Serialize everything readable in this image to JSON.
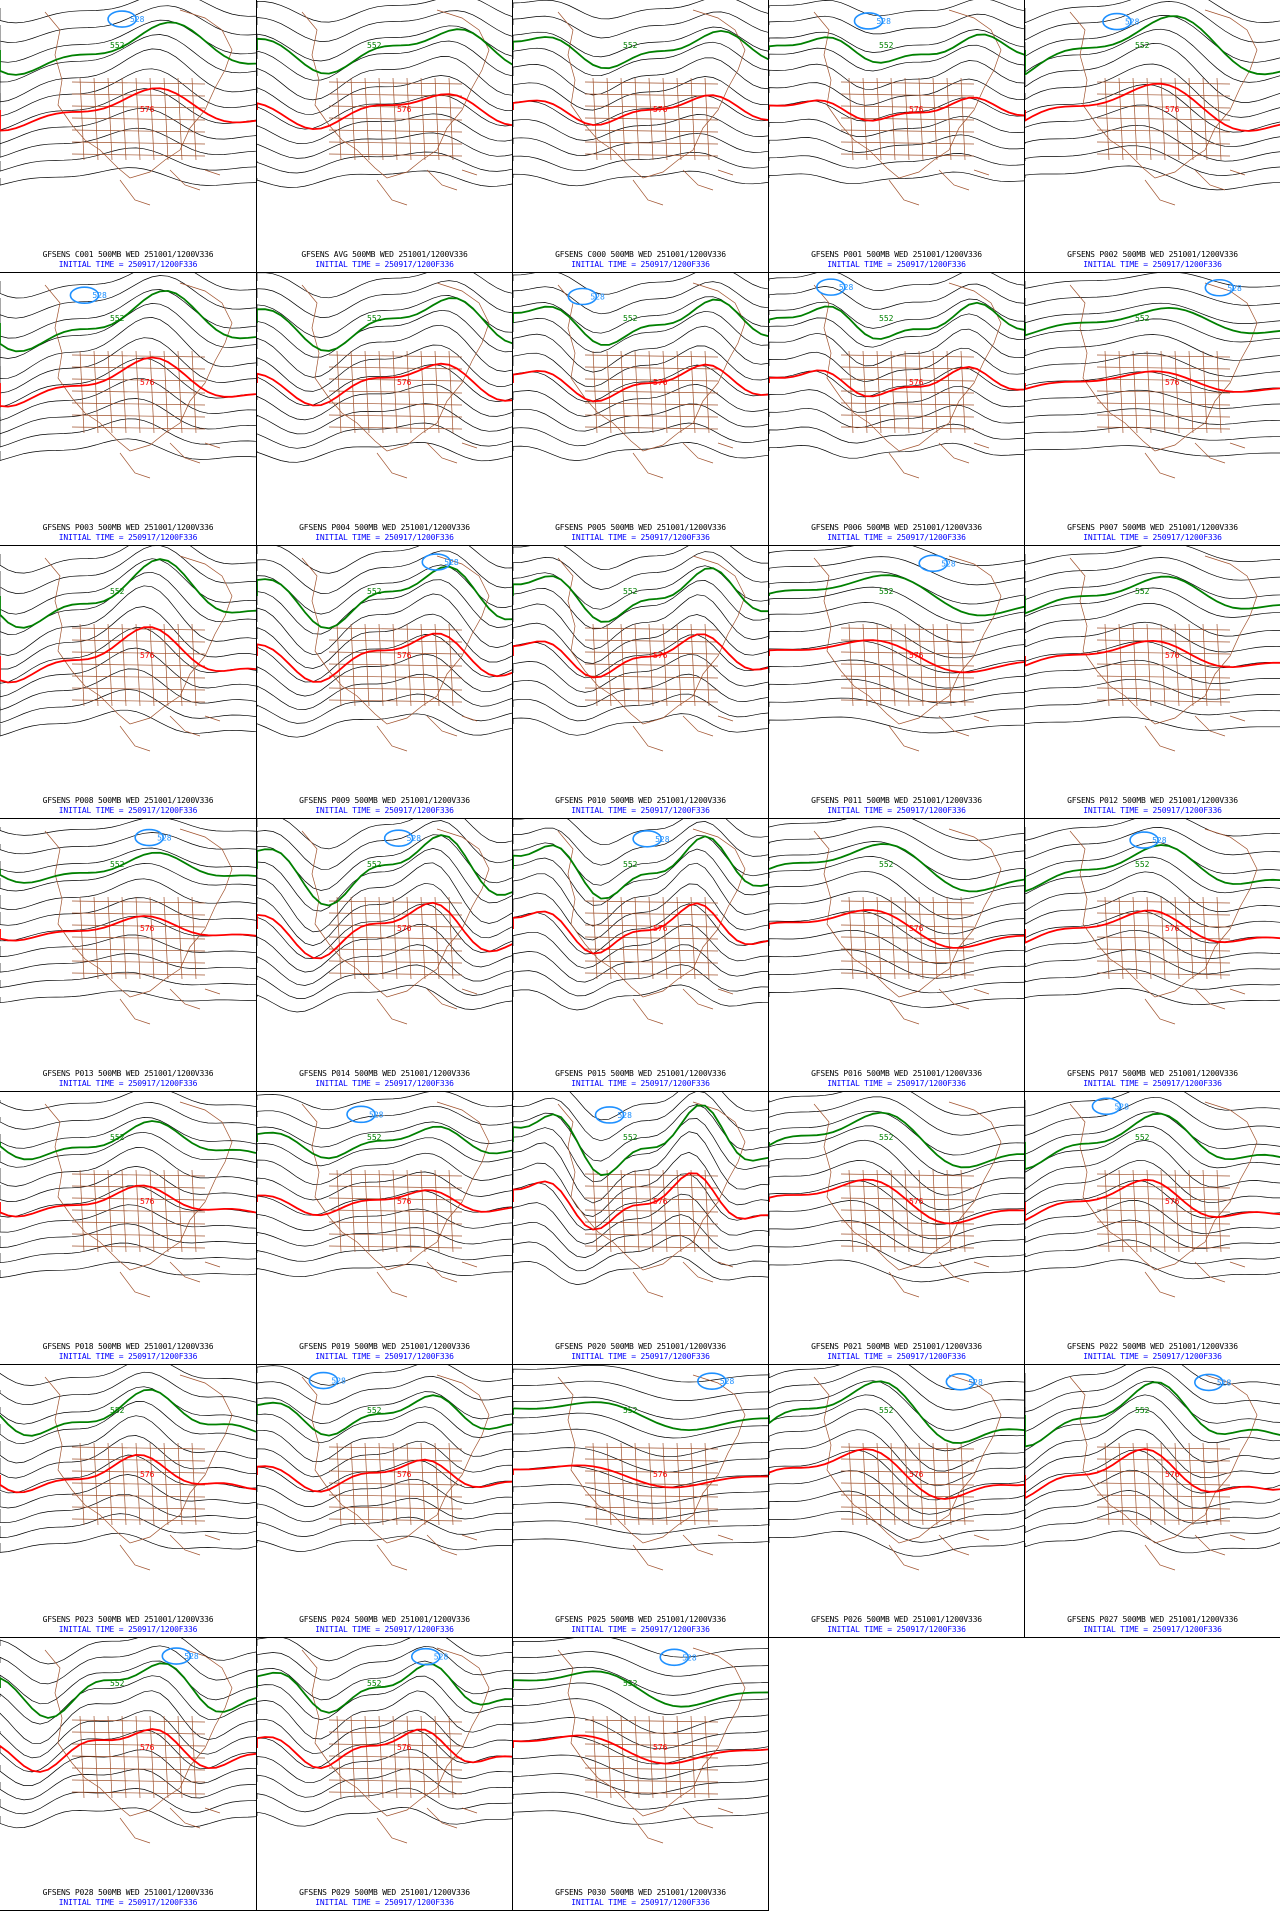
{
  "colors": {
    "height_contour": "#000000",
    "contour_552": "#008000",
    "contour_576": "#ff0000",
    "contour_528": "#1e90ff",
    "map": "#a0522d",
    "caption_title": "#000000",
    "caption_time": "#0000ff"
  },
  "panels": [
    {
      "title": "GFSENS C001 500MB WED 251001/1200V336",
      "time": "INITIAL TIME = 250917/1200F336",
      "labels": {
        "green": "552",
        "red": "576",
        "blue": "528"
      }
    },
    {
      "title": "GFSENS AVG 500MB WED 251001/1200V336",
      "time": "INITIAL TIME = 250917/1200F336",
      "labels": {
        "green": "552",
        "red": "576"
      }
    },
    {
      "title": "GFSENS C000 500MB WED 251001/1200V336",
      "time": "INITIAL TIME = 250917/1200F336",
      "labels": {
        "green": "552",
        "red": "576"
      }
    },
    {
      "title": "GFSENS P001 500MB WED 251001/1200V336",
      "time": "INITIAL TIME = 250917/1200F336",
      "labels": {
        "green": "552",
        "red": "576",
        "blue": "528"
      }
    },
    {
      "title": "GFSENS P002 500MB WED 251001/1200V336",
      "time": "INITIAL TIME = 250917/1200F336",
      "labels": {
        "green": "552",
        "red": "576",
        "blue": "528"
      }
    },
    {
      "title": "GFSENS P003 500MB WED 251001/1200V336",
      "time": "INITIAL TIME = 250917/1200F336",
      "labels": {
        "green": "552",
        "red": "576",
        "blue": "528"
      }
    },
    {
      "title": "GFSENS P004 500MB WED 251001/1200V336",
      "time": "INITIAL TIME = 250917/1200F336",
      "labels": {
        "green": "552",
        "red": "576"
      }
    },
    {
      "title": "GFSENS P005 500MB WED 251001/1200V336",
      "time": "INITIAL TIME = 250917/1200F336",
      "labels": {
        "green": "552",
        "red": "576",
        "blue": "528"
      }
    },
    {
      "title": "GFSENS P006 500MB WED 251001/1200V336",
      "time": "INITIAL TIME = 250917/1200F336",
      "labels": {
        "green": "552",
        "red": "576",
        "blue": "528"
      }
    },
    {
      "title": "GFSENS P007 500MB WED 251001/1200V336",
      "time": "INITIAL TIME = 250917/1200F336",
      "labels": {
        "green": "552",
        "red": "576",
        "blue": "528"
      }
    },
    {
      "title": "GFSENS P008 500MB WED 251001/1200V336",
      "time": "INITIAL TIME = 250917/1200F336",
      "labels": {
        "green": "552",
        "red": "576"
      }
    },
    {
      "title": "GFSENS P009 500MB WED 251001/1200V336",
      "time": "INITIAL TIME = 250917/1200F336",
      "labels": {
        "green": "552",
        "red": "576",
        "blue": "528"
      }
    },
    {
      "title": "GFSENS P010 500MB WED 251001/1200V336",
      "time": "INITIAL TIME = 250917/1200F336",
      "labels": {
        "green": "552",
        "red": "576"
      }
    },
    {
      "title": "GFSENS P011 500MB WED 251001/1200V336",
      "time": "INITIAL TIME = 250917/1200F336",
      "labels": {
        "green": "552",
        "red": "576",
        "blue": "528"
      }
    },
    {
      "title": "GFSENS P012 500MB WED 251001/1200V336",
      "time": "INITIAL TIME = 250917/1200F336",
      "labels": {
        "green": "552",
        "red": "576"
      }
    },
    {
      "title": "GFSENS P013 500MB WED 251001/1200V336",
      "time": "INITIAL TIME = 250917/1200F336",
      "labels": {
        "green": "552",
        "red": "576",
        "blue": "528"
      }
    },
    {
      "title": "GFSENS P014 500MB WED 251001/1200V336",
      "time": "INITIAL TIME = 250917/1200F336",
      "labels": {
        "green": "552",
        "red": "576",
        "blue": "528"
      }
    },
    {
      "title": "GFSENS P015 500MB WED 251001/1200V336",
      "time": "INITIAL TIME = 250917/1200F336",
      "labels": {
        "green": "552",
        "red": "576",
        "blue": "528"
      }
    },
    {
      "title": "GFSENS P016 500MB WED 251001/1200V336",
      "time": "INITIAL TIME = 250917/1200F336",
      "labels": {
        "green": "552",
        "red": "576"
      }
    },
    {
      "title": "GFSENS P017 500MB WED 251001/1200V336",
      "time": "INITIAL TIME = 250917/1200F336",
      "labels": {
        "green": "552",
        "red": "576",
        "blue": "528"
      }
    },
    {
      "title": "GFSENS P018 500MB WED 251001/1200V336",
      "time": "INITIAL TIME = 250917/1200F336",
      "labels": {
        "green": "552",
        "red": "576"
      }
    },
    {
      "title": "GFSENS P019 500MB WED 251001/1200V336",
      "time": "INITIAL TIME = 250917/1200F336",
      "labels": {
        "green": "552",
        "red": "576",
        "blue": "528"
      }
    },
    {
      "title": "GFSENS P020 500MB WED 251001/1200V336",
      "time": "INITIAL TIME = 250917/1200F336",
      "labels": {
        "green": "552",
        "red": "576",
        "blue": "528"
      }
    },
    {
      "title": "GFSENS P021 500MB WED 251001/1200V336",
      "time": "INITIAL TIME = 250917/1200F336",
      "labels": {
        "green": "552",
        "red": "576"
      }
    },
    {
      "title": "GFSENS P022 500MB WED 251001/1200V336",
      "time": "INITIAL TIME = 250917/1200F336",
      "labels": {
        "green": "552",
        "red": "576",
        "blue": "528"
      }
    },
    {
      "title": "GFSENS P023 500MB WED 251001/1200V336",
      "time": "INITIAL TIME = 250917/1200F336",
      "labels": {
        "green": "552",
        "red": "576"
      }
    },
    {
      "title": "GFSENS P024 500MB WED 251001/1200V336",
      "time": "INITIAL TIME = 250917/1200F336",
      "labels": {
        "green": "552",
        "red": "576",
        "blue": "528"
      }
    },
    {
      "title": "GFSENS P025 500MB WED 251001/1200V336",
      "time": "INITIAL TIME = 250917/1200F336",
      "labels": {
        "green": "552",
        "red": "576",
        "blue": "528"
      }
    },
    {
      "title": "GFSENS P026 500MB WED 251001/1200V336",
      "time": "INITIAL TIME = 250917/1200F336",
      "labels": {
        "green": "552",
        "red": "576",
        "blue": "528"
      }
    },
    {
      "title": "GFSENS P027 500MB WED 251001/1200V336",
      "time": "INITIAL TIME = 250917/1200F336",
      "labels": {
        "green": "552",
        "red": "576",
        "blue": "528"
      }
    },
    {
      "title": "GFSENS P028 500MB WED 251001/1200V336",
      "time": "INITIAL TIME = 250917/1200F336",
      "labels": {
        "green": "552",
        "red": "576",
        "blue": "528"
      }
    },
    {
      "title": "GFSENS P029 500MB WED 251001/1200V336",
      "time": "INITIAL TIME = 250917/1200F336",
      "labels": {
        "green": "552",
        "red": "576",
        "blue": "528"
      }
    },
    {
      "title": "GFSENS P030 500MB WED 251001/1200V336",
      "time": "INITIAL TIME = 250917/1200F336",
      "labels": {
        "green": "552",
        "red": "576",
        "blue": "528"
      }
    }
  ]
}
